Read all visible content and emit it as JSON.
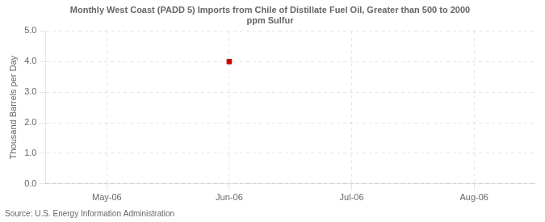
{
  "chart_data": {
    "type": "scatter",
    "title": "Monthly West Coast (PADD 5) Imports from Chile of Distillate Fuel Oil, Greater than 500 to 2000\nppm Sulfur",
    "y_label": "Thousand Barrels per Day",
    "source": "Source: U.S. Energy Information Administration",
    "categories": [
      "May-06",
      "Jun-06",
      "Jul-06",
      "Aug-06"
    ],
    "values": [
      null,
      4.0,
      null,
      null
    ],
    "color": "#cc0000",
    "marker": "square",
    "ylim": [
      0.0,
      5.0
    ],
    "yticks": [
      {
        "value": 0,
        "label": "0.0"
      },
      {
        "value": 1,
        "label": "1.0"
      },
      {
        "value": 2,
        "label": "2.0"
      },
      {
        "value": 3,
        "label": "3.0"
      },
      {
        "value": 4,
        "label": "4.0"
      },
      {
        "value": 5,
        "label": "5.0"
      }
    ],
    "grid": true
  }
}
